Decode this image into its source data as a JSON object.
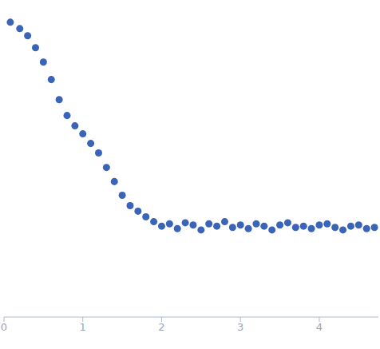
{
  "chart_data": {
    "type": "scatter",
    "x": [
      0.08,
      0.2,
      0.3,
      0.4,
      0.5,
      0.6,
      0.7,
      0.8,
      0.9,
      1.0,
      1.1,
      1.2,
      1.3,
      1.4,
      1.5,
      1.6,
      1.7,
      1.8,
      1.9,
      2.0,
      2.1,
      2.2,
      2.3,
      2.4,
      2.5,
      2.6,
      2.7,
      2.8,
      2.9,
      3.0,
      3.1,
      3.2,
      3.3,
      3.4,
      3.5,
      3.6,
      3.7,
      3.8,
      3.9,
      4.0,
      4.1,
      4.2,
      4.3,
      4.4,
      4.5,
      4.6,
      4.7
    ],
    "values": [
      1.047,
      0.871,
      0.708,
      0.501,
      0.331,
      0.2,
      0.112,
      0.0708,
      0.0525,
      0.0417,
      0.0316,
      0.024,
      0.0158,
      0.0105,
      0.00708,
      0.00525,
      0.00447,
      0.0038,
      0.0033,
      0.0029,
      0.0031,
      0.0027,
      0.0032,
      0.003,
      0.0026,
      0.0031,
      0.0029,
      0.0033,
      0.0028,
      0.003,
      0.0027,
      0.0031,
      0.0029,
      0.0026,
      0.003,
      0.0032,
      0.0028,
      0.0029,
      0.0027,
      0.003,
      0.0031,
      0.0028,
      0.0026,
      0.0029,
      0.003,
      0.0027,
      0.0028
    ],
    "xlim": [
      0,
      4.75
    ],
    "xticks": [
      0,
      1,
      2,
      3,
      4
    ],
    "ylim": [
      0.00021,
      1.58
    ],
    "yticks": [
      0.001,
      0.01,
      0.1,
      1
    ],
    "log": "y",
    "tick_labels": "x",
    "color": "#3a64b8",
    "marker": "circle"
  }
}
